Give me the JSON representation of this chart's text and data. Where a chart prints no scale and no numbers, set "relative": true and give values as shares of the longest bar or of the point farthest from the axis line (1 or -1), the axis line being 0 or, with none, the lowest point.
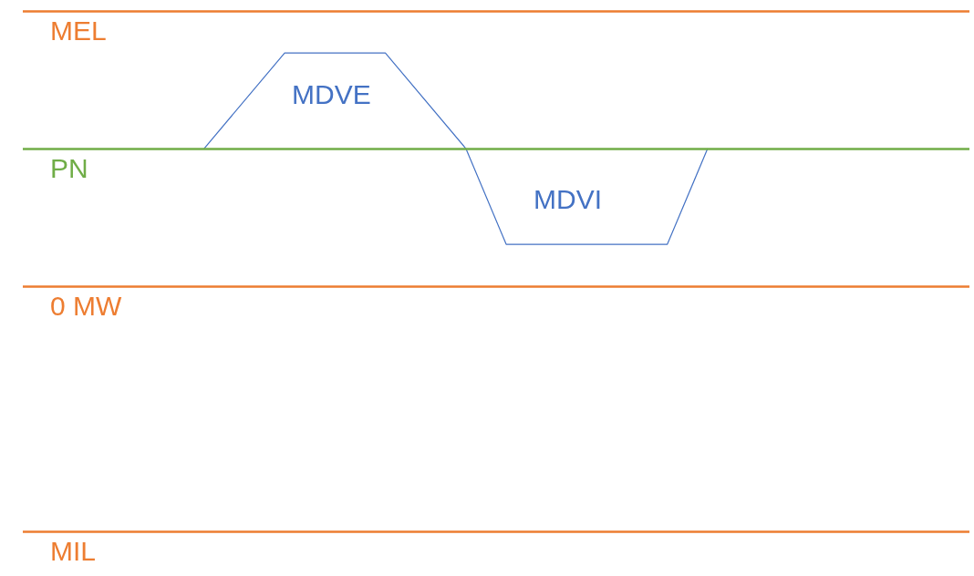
{
  "chart_data": {
    "type": "line",
    "relative": true,
    "marker": "none",
    "line_style": "solid",
    "categories": [
      null,
      null,
      null,
      null,
      null,
      null,
      null,
      null,
      null,
      null,
      null,
      null,
      null,
      null,
      null,
      null,
      null,
      null,
      null,
      null,
      null,
      null,
      null,
      null,
      null,
      null,
      null,
      null,
      null,
      null,
      null,
      null,
      null,
      null,
      null,
      null,
      null,
      null,
      null,
      null,
      null,
      null,
      null,
      null,
      null,
      null,
      null,
      null
    ],
    "series": [
      {
        "color": "#4472c4",
        "values": [
          null,
          null,
          null,
          null,
          null,
          null,
          null,
          null,
          null,
          0.59,
          null,
          null,
          null,
          1,
          null,
          null,
          null,
          null,
          1,
          null,
          null,
          null,
          0.59,
          null,
          0.18,
          null,
          null,
          null,
          null,
          null,
          null,
          null,
          0.18,
          null,
          0.59,
          null,
          null,
          null,
          null,
          null,
          null,
          null,
          null,
          null,
          null,
          null,
          null,
          null
        ]
      }
    ],
    "ref_lines": [
      {
        "axis": "y",
        "value": 1.18,
        "label": "MEL",
        "color": "#ed7d31"
      },
      {
        "axis": "y",
        "value": 0.59,
        "label": "PN",
        "color": "#70ad47"
      },
      {
        "axis": "y",
        "value": 0,
        "label": "0 MW",
        "color": "#ed7d31"
      },
      {
        "axis": "y",
        "value": -1.05,
        "label": "MIL",
        "color": "#ed7d31"
      }
    ],
    "annotations": [
      "MDVE",
      "MDVI"
    ]
  }
}
